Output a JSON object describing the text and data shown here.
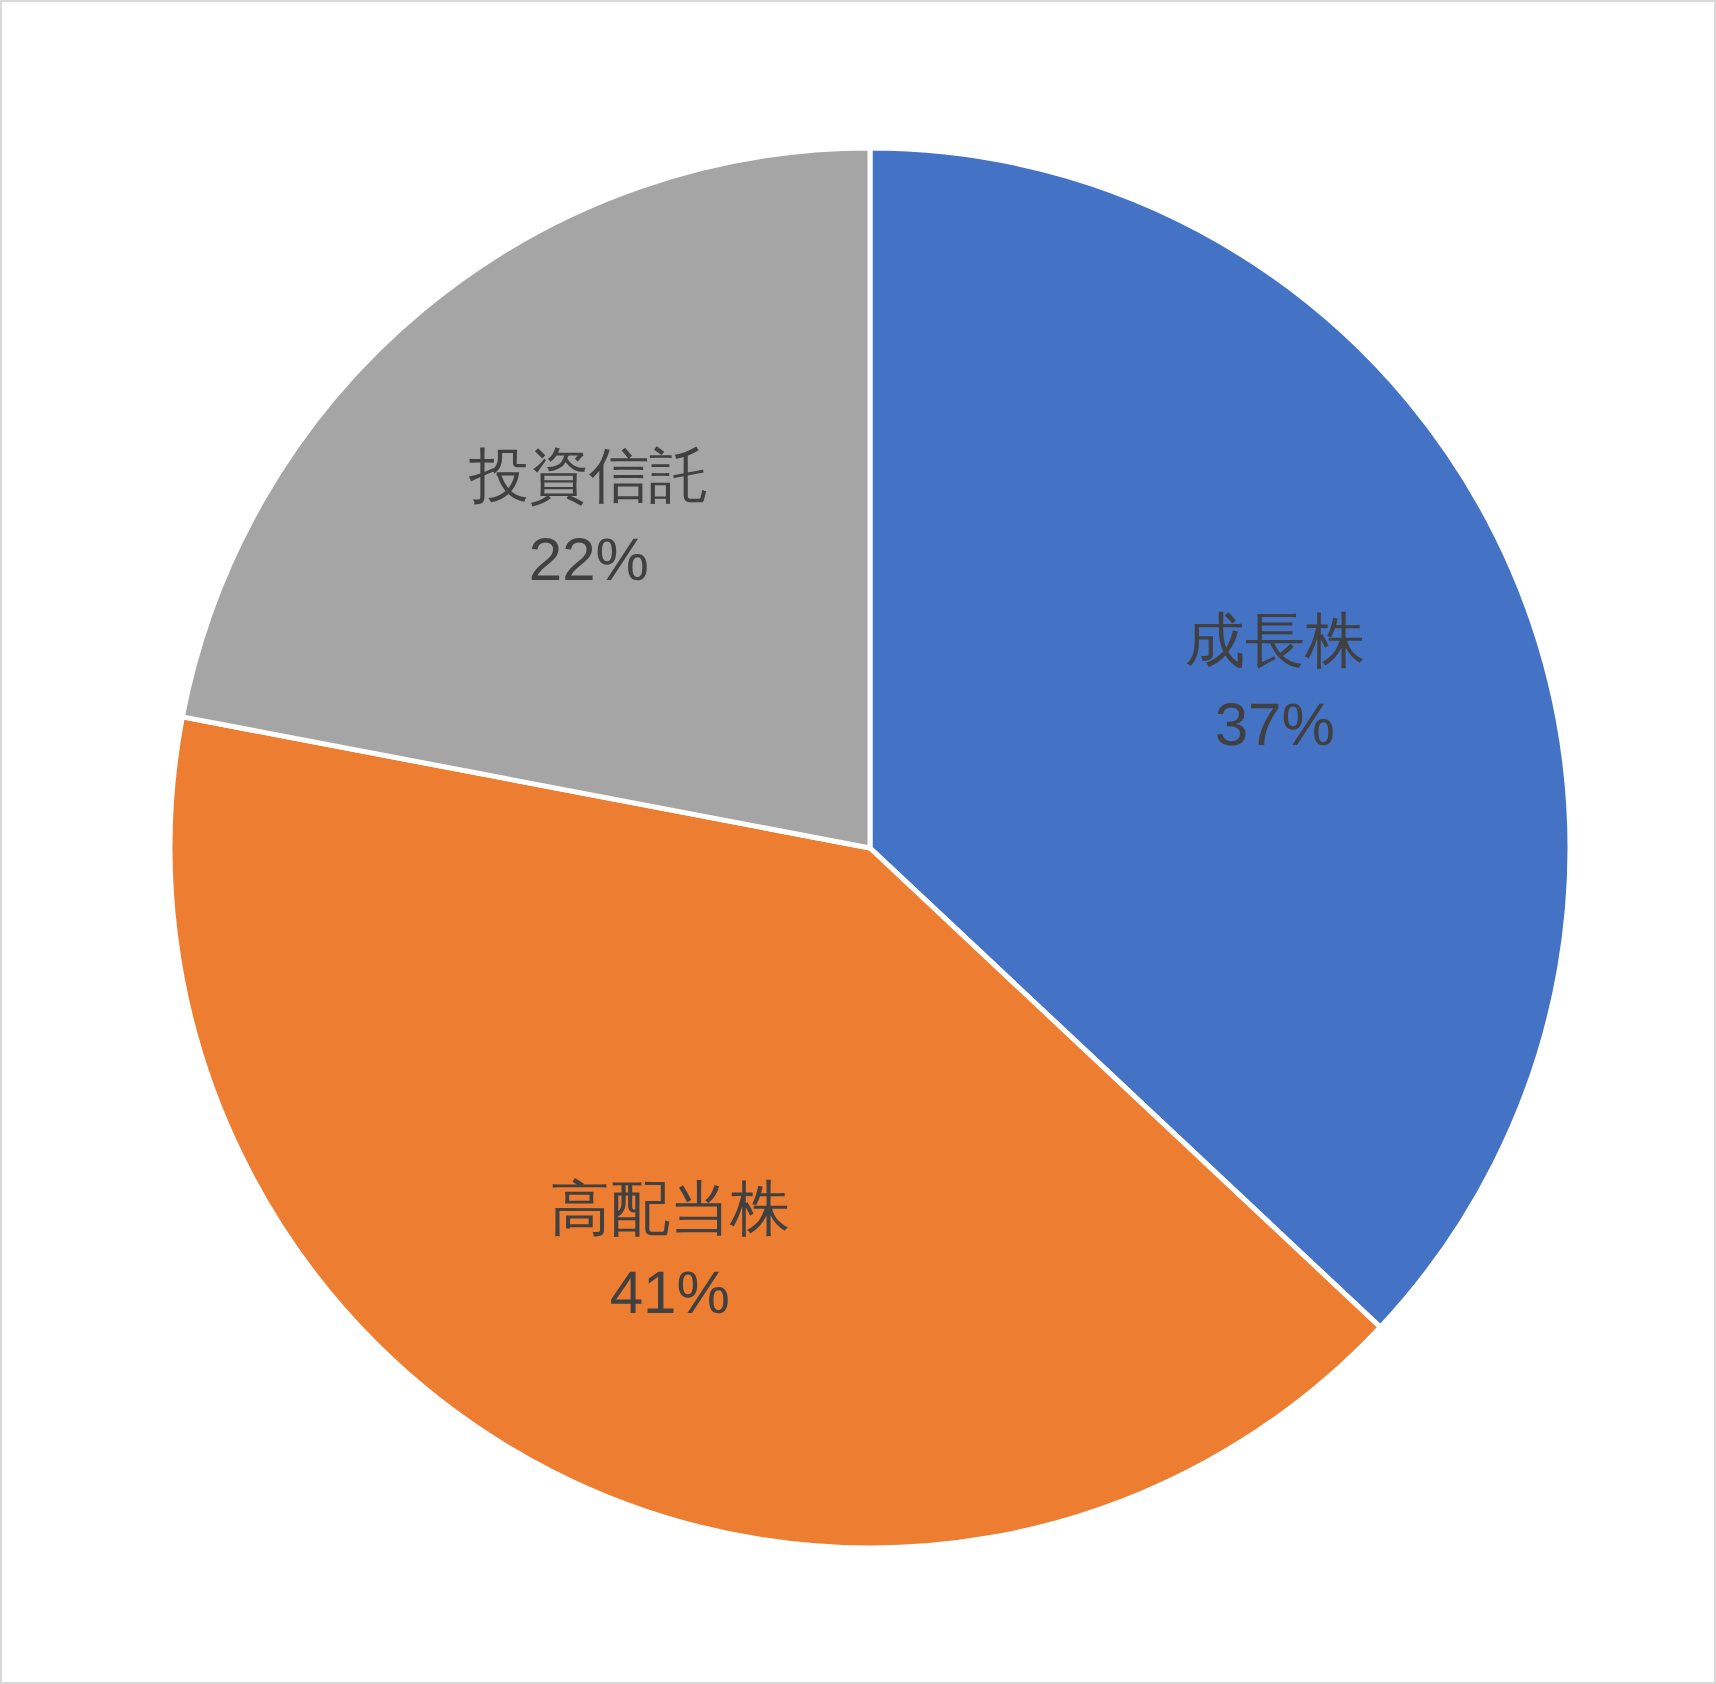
{
  "chart_data": {
    "type": "pie",
    "categories": [
      "成長株",
      "高配当株",
      "投資信託"
    ],
    "values": [
      37,
      41,
      22
    ],
    "colors": [
      "#4472c4",
      "#ed7d31",
      "#a5a5a5"
    ],
    "value_labels": [
      "37%",
      "41%",
      "22%"
    ],
    "legend": false
  }
}
